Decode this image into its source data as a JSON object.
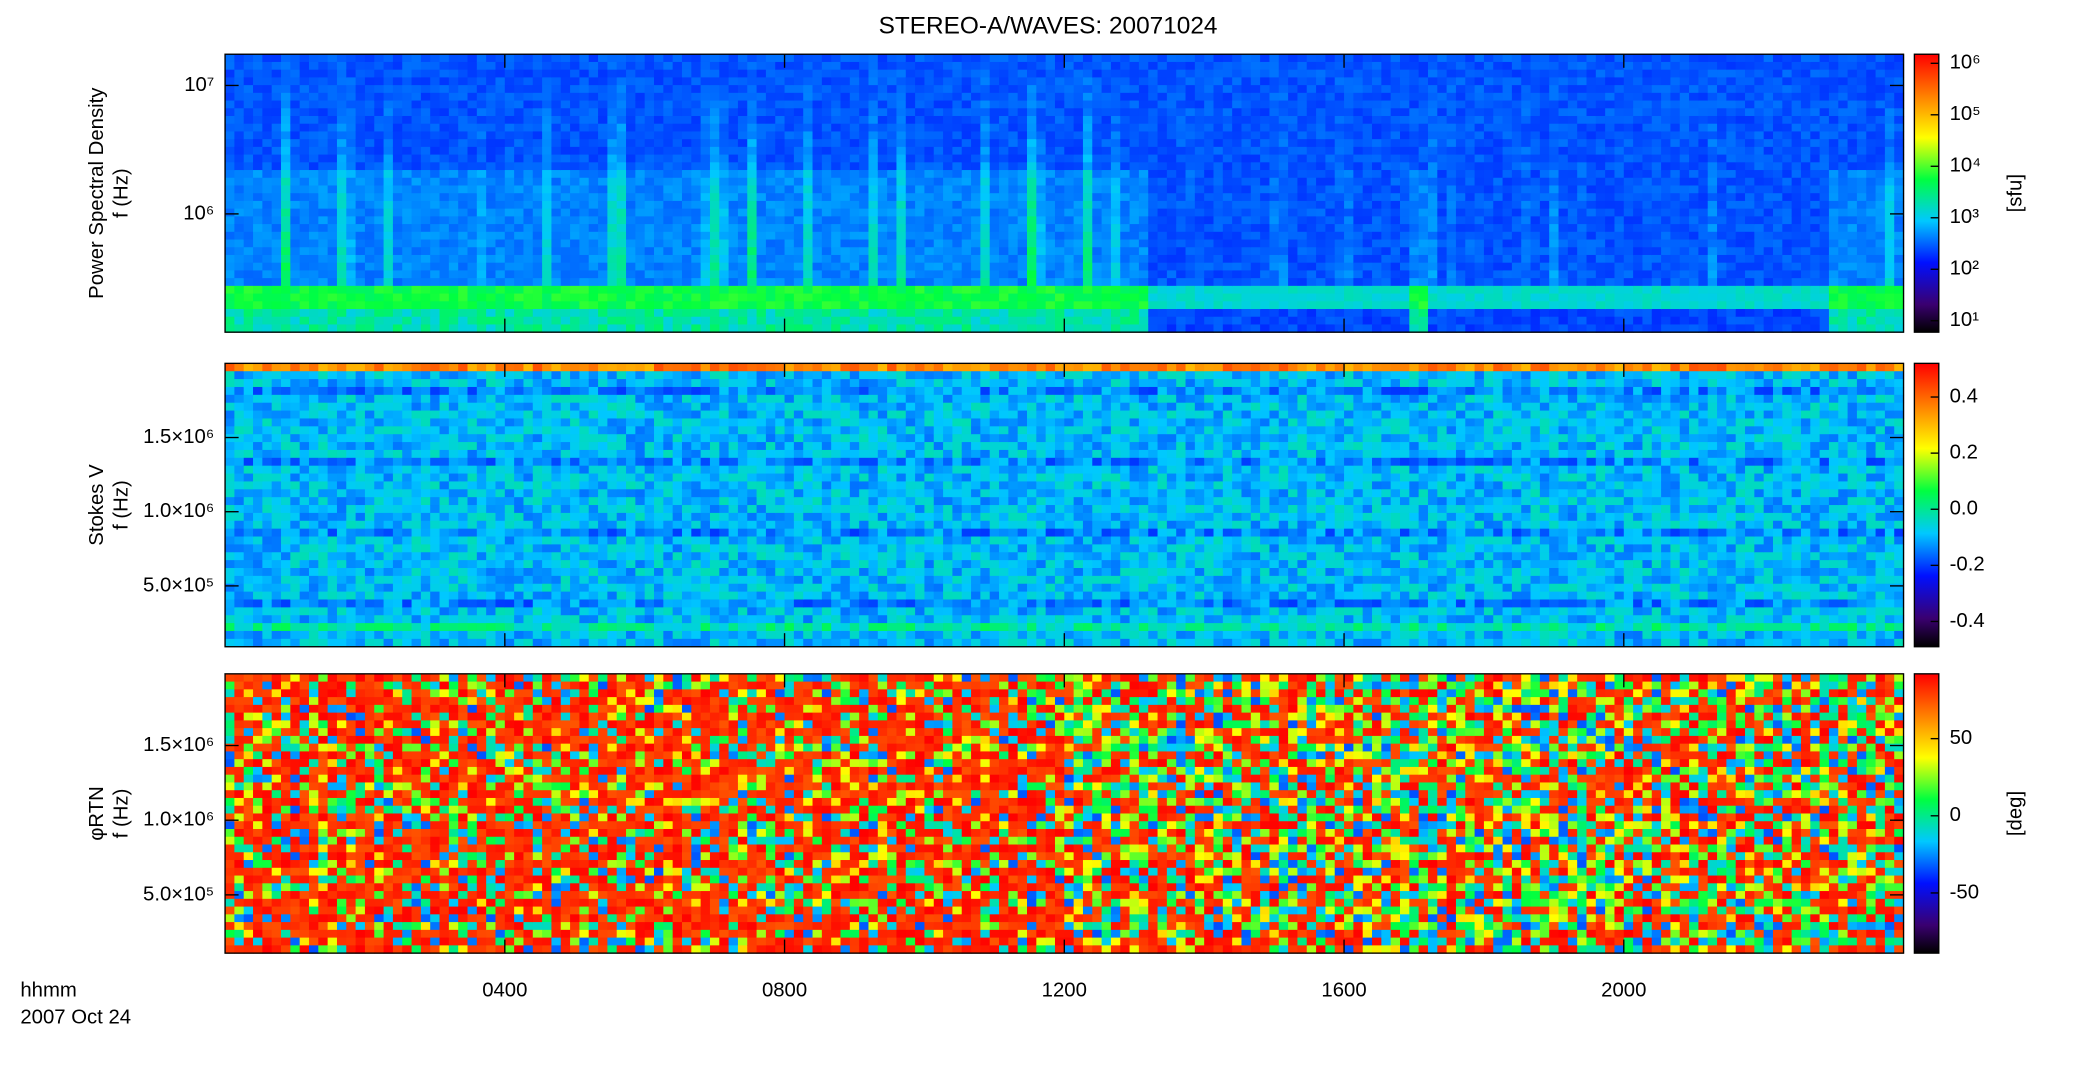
{
  "title": "STEREO-A/WAVES: 20071024",
  "x_labels": [
    "hhmm",
    "2007 Oct 24"
  ],
  "chart_data": [
    {
      "type": "spectrogram",
      "y_label": [
        "Power Spectral Density",
        "f (Hz)"
      ],
      "ylog": true,
      "xlim": [
        0,
        24
      ],
      "ylim": [
        120000,
        17500000
      ],
      "yticks": [
        {
          "value": 1000000,
          "label": "10⁶"
        },
        {
          "value": 10000000,
          "label": "10⁷"
        }
      ],
      "colorbar": {
        "log": true,
        "lim": [
          6,
          1500000
        ],
        "label": "[sfu]",
        "ticks": [
          {
            "value": 10,
            "label": "10¹"
          },
          {
            "value": 100,
            "label": "10²"
          },
          {
            "value": 1000,
            "label": "10³"
          },
          {
            "value": 10000,
            "label": "10⁴"
          },
          {
            "value": 100000,
            "label": "10⁵"
          },
          {
            "value": 1000000,
            "label": "10⁶"
          }
        ]
      }
    },
    {
      "type": "spectrogram",
      "y_label": [
        "Stokes V",
        "f (Hz)"
      ],
      "ylog": false,
      "xlim": [
        0,
        24
      ],
      "ylim": [
        90000,
        2000000
      ],
      "yticks": [
        {
          "value": 500000,
          "label": "5.0×10⁵"
        },
        {
          "value": 1000000,
          "label": "1.0×10⁶"
        },
        {
          "value": 1500000,
          "label": "1.5×10⁶"
        }
      ],
      "colorbar": {
        "log": false,
        "lim": [
          -0.49,
          0.52
        ],
        "ticks": [
          -0.4,
          -0.2,
          {
            "value": 0,
            "label": "0.0"
          },
          0.2,
          0.4
        ]
      }
    },
    {
      "type": "spectrogram",
      "y_label": [
        "φRTN",
        "f (Hz)"
      ],
      "ylog": false,
      "xlim": [
        0,
        24
      ],
      "ylim": [
        110000,
        1980000
      ],
      "yticks": [
        {
          "value": 500000,
          "label": "5.0×10⁵"
        },
        {
          "value": 1000000,
          "label": "1.0×10⁶"
        },
        {
          "value": 1500000,
          "label": "1.5×10⁶"
        }
      ],
      "xticks": [
        {
          "value": 4,
          "label": "0400"
        },
        {
          "value": 8,
          "label": "0800"
        },
        {
          "value": 12,
          "label": "1200"
        },
        {
          "value": 16,
          "label": "1600"
        },
        {
          "value": 20,
          "label": "2000"
        }
      ],
      "colorbar": {
        "log": false,
        "lim": [
          -89,
          92
        ],
        "label": "[deg]",
        "ticks": [
          -50,
          0,
          50
        ]
      }
    }
  ]
}
